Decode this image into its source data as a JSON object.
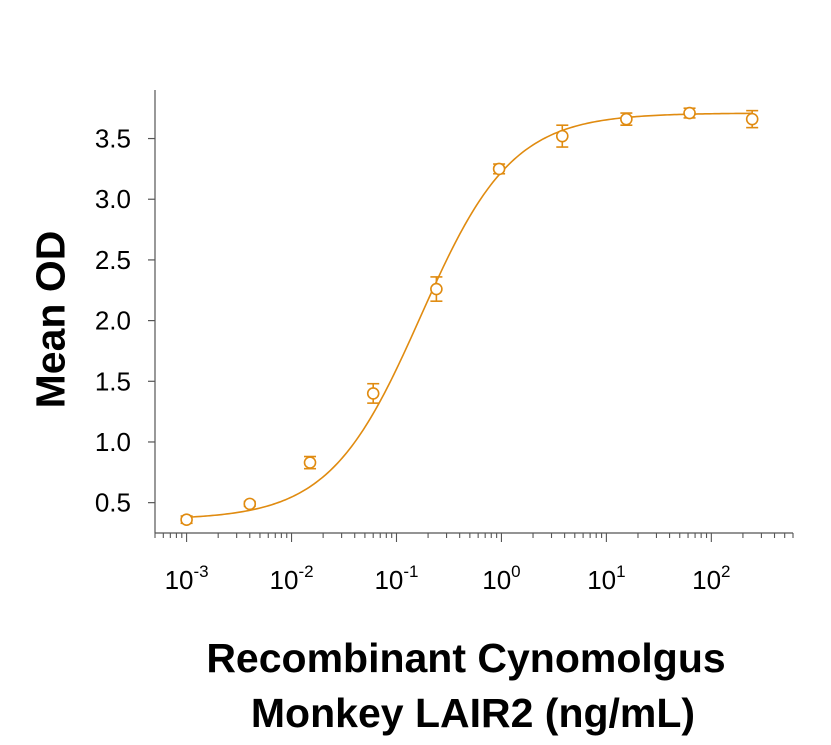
{
  "chart_data": {
    "type": "scatter",
    "xscale": "log",
    "xlim": [
      0.0005,
      600
    ],
    "ylim": [
      0.25,
      3.9
    ],
    "xlabel_lines": [
      "Recombinant Cynomolgus",
      "Monkey LAIR2 (ng/mL)"
    ],
    "ylabel": "Mean OD",
    "x_ticks": [
      {
        "value": 0.001,
        "base": "10",
        "exp": "-3"
      },
      {
        "value": 0.01,
        "base": "10",
        "exp": "-2"
      },
      {
        "value": 0.1,
        "base": "10",
        "exp": "-1"
      },
      {
        "value": 1,
        "base": "10",
        "exp": "0"
      },
      {
        "value": 10,
        "base": "10",
        "exp": "1"
      },
      {
        "value": 100,
        "base": "10",
        "exp": "2"
      }
    ],
    "y_ticks": [
      {
        "value": 0.5,
        "label": "0.5"
      },
      {
        "value": 1.0,
        "label": "1.0"
      },
      {
        "value": 1.5,
        "label": "1.5"
      },
      {
        "value": 2.0,
        "label": "2.0"
      },
      {
        "value": 2.5,
        "label": "2.5"
      },
      {
        "value": 3.0,
        "label": "3.0"
      },
      {
        "value": 3.5,
        "label": "3.5"
      }
    ],
    "series": [
      {
        "color": "#E08B10",
        "marker": "open-circle",
        "points": [
          {
            "x": 0.001,
            "y": 0.36,
            "err": 0.03
          },
          {
            "x": 0.004,
            "y": 0.49,
            "err": 0.02
          },
          {
            "x": 0.015,
            "y": 0.83,
            "err": 0.05
          },
          {
            "x": 0.06,
            "y": 1.4,
            "err": 0.08
          },
          {
            "x": 0.24,
            "y": 2.26,
            "err": 0.1
          },
          {
            "x": 0.95,
            "y": 3.25,
            "err": 0.04
          },
          {
            "x": 3.8,
            "y": 3.52,
            "err": 0.09
          },
          {
            "x": 15.5,
            "y": 3.66,
            "err": 0.05
          },
          {
            "x": 62,
            "y": 3.71,
            "err": 0.04
          },
          {
            "x": 245,
            "y": 3.66,
            "err": 0.07
          }
        ],
        "fit": {
          "model": "4PL",
          "bottom": 0.36,
          "top": 3.71,
          "ec50": 0.17,
          "hill": 1.0
        }
      }
    ]
  }
}
